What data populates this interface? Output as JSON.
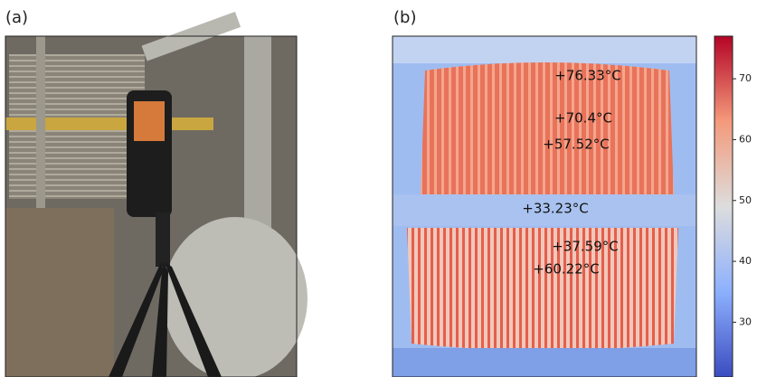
{
  "panels": [
    {
      "label": "(a)"
    },
    {
      "label": "(b)",
      "annotations": [
        "+76.33°C",
        "+70.4°C",
        "+57.52°C",
        "+33.23°C",
        "+37.59°C",
        "+60.22°C"
      ]
    }
  ],
  "colorbar": {
    "lim": [
      21,
      77
    ],
    "ticks": [
      30,
      40,
      50,
      60,
      70
    ]
  }
}
